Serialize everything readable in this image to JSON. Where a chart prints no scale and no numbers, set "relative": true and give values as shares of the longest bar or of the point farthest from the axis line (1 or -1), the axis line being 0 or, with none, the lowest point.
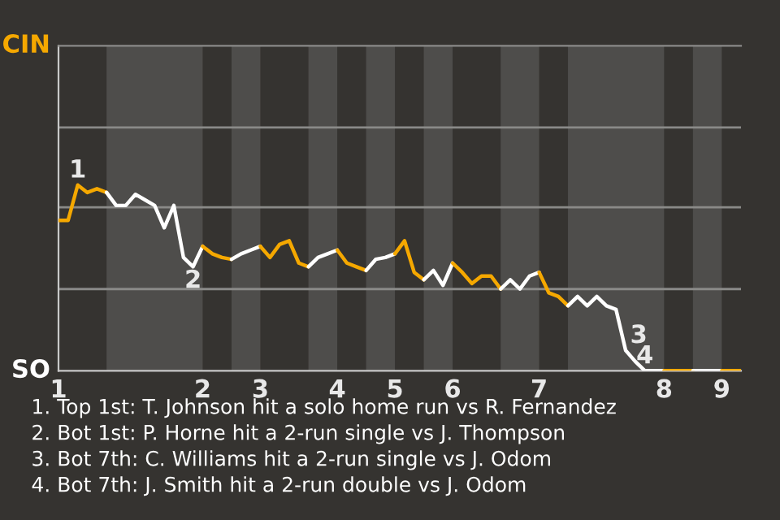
{
  "chart_data": {
    "type": "line",
    "relative": true,
    "categories": [
      "1",
      null,
      null,
      null,
      null,
      null,
      null,
      null,
      null,
      null,
      null,
      null,
      null,
      null,
      null,
      "2",
      null,
      null,
      null,
      null,
      null,
      "3",
      null,
      null,
      null,
      null,
      null,
      null,
      null,
      "4",
      null,
      null,
      null,
      null,
      null,
      "5",
      null,
      null,
      null,
      null,
      null,
      "6",
      null,
      null,
      null,
      null,
      null,
      null,
      null,
      null,
      "7",
      null,
      null,
      null,
      null,
      null,
      null,
      null,
      null,
      null,
      null,
      null,
      null,
      "8",
      null,
      null,
      null,
      null,
      null,
      "9",
      null,
      null
    ],
    "ref_lines": [
      {
        "axis": "y",
        "value": 0.44,
        "color": "#8a8a88"
      },
      {
        "axis": "y",
        "value": 0.88,
        "color": "#8a8a88"
      },
      {
        "axis": "y",
        "value": 1.31,
        "color": "#8a8a88"
      }
    ],
    "series": [
      {
        "color": "#f5a800",
        "values": [
          0.81,
          0.81,
          1,
          0.96,
          0.98,
          0.96,
          null,
          null,
          null,
          null,
          null,
          null,
          null,
          null,
          null,
          null,
          null,
          null,
          null,
          null,
          null,
          null,
          null,
          null,
          null,
          null,
          null,
          null,
          null,
          null,
          null,
          null,
          null,
          null,
          null,
          null,
          null,
          null,
          null,
          null,
          null,
          null,
          null,
          null,
          null,
          null,
          null,
          null,
          null,
          null,
          null,
          null,
          null,
          null,
          null,
          null,
          null,
          null,
          null,
          null,
          null,
          null,
          null,
          null,
          null,
          null,
          null,
          null,
          null,
          null,
          null,
          null
        ]
      },
      {
        "color": "#ffffff",
        "values": [
          null,
          null,
          null,
          null,
          null,
          0.96,
          0.89,
          0.89,
          0.95,
          0.92,
          0.89,
          0.77,
          0.89,
          0.61,
          0.56,
          0.67,
          null,
          null,
          null,
          null,
          null,
          null,
          null,
          null,
          null,
          null,
          null,
          null,
          null,
          null,
          null,
          null,
          null,
          null,
          null,
          null,
          null,
          null,
          null,
          null,
          null,
          null,
          null,
          null,
          null,
          null,
          null,
          null,
          null,
          null,
          null,
          null,
          null,
          null,
          null,
          null,
          null,
          null,
          null,
          null,
          null,
          null,
          null,
          null,
          null,
          null,
          null,
          null,
          null,
          null,
          null,
          null
        ]
      },
      {
        "color": "#f5a800",
        "values": [
          null,
          null,
          null,
          null,
          null,
          null,
          null,
          null,
          null,
          null,
          null,
          null,
          null,
          null,
          null,
          0.67,
          0.63,
          0.61,
          0.6,
          null,
          null,
          null,
          null,
          null,
          null,
          null,
          null,
          null,
          null,
          null,
          null,
          null,
          null,
          null,
          null,
          null,
          null,
          null,
          null,
          null,
          null,
          null,
          null,
          null,
          null,
          null,
          null,
          null,
          null,
          null,
          null,
          null,
          null,
          null,
          null,
          null,
          null,
          null,
          null,
          null,
          null,
          null,
          null,
          null,
          null,
          null,
          null,
          null,
          null,
          null,
          null,
          null
        ]
      },
      {
        "color": "#ffffff",
        "values": [
          null,
          null,
          null,
          null,
          null,
          null,
          null,
          null,
          null,
          null,
          null,
          null,
          null,
          null,
          null,
          null,
          null,
          null,
          0.6,
          0.63,
          0.65,
          0.67,
          null,
          null,
          null,
          null,
          null,
          null,
          null,
          null,
          null,
          null,
          null,
          null,
          null,
          null,
          null,
          null,
          null,
          null,
          null,
          null,
          null,
          null,
          null,
          null,
          null,
          null,
          null,
          null,
          null,
          null,
          null,
          null,
          null,
          null,
          null,
          null,
          null,
          null,
          null,
          null,
          null,
          null,
          null,
          null,
          null,
          null,
          null,
          null,
          null,
          null
        ]
      },
      {
        "color": "#f5a800",
        "values": [
          null,
          null,
          null,
          null,
          null,
          null,
          null,
          null,
          null,
          null,
          null,
          null,
          null,
          null,
          null,
          null,
          null,
          null,
          null,
          null,
          null,
          0.67,
          0.61,
          0.68,
          0.7,
          0.58,
          0.56,
          null,
          null,
          null,
          null,
          null,
          null,
          null,
          null,
          null,
          null,
          null,
          null,
          null,
          null,
          null,
          null,
          null,
          null,
          null,
          null,
          null,
          null,
          null,
          null,
          null,
          null,
          null,
          null,
          null,
          null,
          null,
          null,
          null,
          null,
          null,
          null,
          null,
          null,
          null,
          null,
          null,
          null,
          null,
          null,
          null
        ]
      },
      {
        "color": "#ffffff",
        "values": [
          null,
          null,
          null,
          null,
          null,
          null,
          null,
          null,
          null,
          null,
          null,
          null,
          null,
          null,
          null,
          null,
          null,
          null,
          null,
          null,
          null,
          null,
          null,
          null,
          null,
          null,
          0.56,
          0.61,
          0.63,
          0.65,
          null,
          null,
          null,
          null,
          null,
          null,
          null,
          null,
          null,
          null,
          null,
          null,
          null,
          null,
          null,
          null,
          null,
          null,
          null,
          null,
          null,
          null,
          null,
          null,
          null,
          null,
          null,
          null,
          null,
          null,
          null,
          null,
          null,
          null,
          null,
          null,
          null,
          null,
          null,
          null,
          null,
          null
        ]
      },
      {
        "color": "#f5a800",
        "values": [
          null,
          null,
          null,
          null,
          null,
          null,
          null,
          null,
          null,
          null,
          null,
          null,
          null,
          null,
          null,
          null,
          null,
          null,
          null,
          null,
          null,
          null,
          null,
          null,
          null,
          null,
          null,
          null,
          null,
          0.65,
          0.58,
          0.56,
          0.54,
          null,
          null,
          null,
          null,
          null,
          null,
          null,
          null,
          null,
          null,
          null,
          null,
          null,
          null,
          null,
          null,
          null,
          null,
          null,
          null,
          null,
          null,
          null,
          null,
          null,
          null,
          null,
          null,
          null,
          null,
          null,
          null,
          null,
          null,
          null,
          null,
          null,
          null,
          null
        ]
      },
      {
        "color": "#ffffff",
        "values": [
          null,
          null,
          null,
          null,
          null,
          null,
          null,
          null,
          null,
          null,
          null,
          null,
          null,
          null,
          null,
          null,
          null,
          null,
          null,
          null,
          null,
          null,
          null,
          null,
          null,
          null,
          null,
          null,
          null,
          null,
          null,
          null,
          0.54,
          0.6,
          0.61,
          0.63,
          null,
          null,
          null,
          null,
          null,
          null,
          null,
          null,
          null,
          null,
          null,
          null,
          null,
          null,
          null,
          null,
          null,
          null,
          null,
          null,
          null,
          null,
          null,
          null,
          null,
          null,
          null,
          null,
          null,
          null,
          null,
          null,
          null,
          null,
          null,
          null
        ]
      },
      {
        "color": "#f5a800",
        "values": [
          null,
          null,
          null,
          null,
          null,
          null,
          null,
          null,
          null,
          null,
          null,
          null,
          null,
          null,
          null,
          null,
          null,
          null,
          null,
          null,
          null,
          null,
          null,
          null,
          null,
          null,
          null,
          null,
          null,
          null,
          null,
          null,
          null,
          null,
          null,
          0.63,
          0.7,
          0.53,
          0.49,
          null,
          null,
          null,
          null,
          null,
          null,
          null,
          null,
          null,
          null,
          null,
          null,
          null,
          null,
          null,
          null,
          null,
          null,
          null,
          null,
          null,
          null,
          null,
          null,
          null,
          null,
          null,
          null,
          null,
          null,
          null,
          null,
          null
        ]
      },
      {
        "color": "#ffffff",
        "values": [
          null,
          null,
          null,
          null,
          null,
          null,
          null,
          null,
          null,
          null,
          null,
          null,
          null,
          null,
          null,
          null,
          null,
          null,
          null,
          null,
          null,
          null,
          null,
          null,
          null,
          null,
          null,
          null,
          null,
          null,
          null,
          null,
          null,
          null,
          null,
          null,
          null,
          null,
          0.49,
          0.54,
          0.46,
          0.58,
          null,
          null,
          null,
          null,
          null,
          null,
          null,
          null,
          null,
          null,
          null,
          null,
          null,
          null,
          null,
          null,
          null,
          null,
          null,
          null,
          null,
          null,
          null,
          null,
          null,
          null,
          null,
          null,
          null,
          null
        ]
      },
      {
        "color": "#f5a800",
        "values": [
          null,
          null,
          null,
          null,
          null,
          null,
          null,
          null,
          null,
          null,
          null,
          null,
          null,
          null,
          null,
          null,
          null,
          null,
          null,
          null,
          null,
          null,
          null,
          null,
          null,
          null,
          null,
          null,
          null,
          null,
          null,
          null,
          null,
          null,
          null,
          null,
          null,
          null,
          null,
          null,
          null,
          0.58,
          0.53,
          0.47,
          0.51,
          0.51,
          0.44,
          null,
          null,
          null,
          null,
          null,
          null,
          null,
          null,
          null,
          null,
          null,
          null,
          null,
          null,
          null,
          null,
          null,
          null,
          null,
          null,
          null,
          null,
          null,
          null,
          null
        ]
      },
      {
        "color": "#ffffff",
        "values": [
          null,
          null,
          null,
          null,
          null,
          null,
          null,
          null,
          null,
          null,
          null,
          null,
          null,
          null,
          null,
          null,
          null,
          null,
          null,
          null,
          null,
          null,
          null,
          null,
          null,
          null,
          null,
          null,
          null,
          null,
          null,
          null,
          null,
          null,
          null,
          null,
          null,
          null,
          null,
          null,
          null,
          null,
          null,
          null,
          null,
          null,
          0.44,
          0.49,
          0.44,
          0.51,
          0.53,
          null,
          null,
          null,
          null,
          null,
          null,
          null,
          null,
          null,
          null,
          null,
          null,
          null,
          null,
          null,
          null,
          null,
          null,
          null,
          null,
          null
        ]
      },
      {
        "color": "#f5a800",
        "values": [
          null,
          null,
          null,
          null,
          null,
          null,
          null,
          null,
          null,
          null,
          null,
          null,
          null,
          null,
          null,
          null,
          null,
          null,
          null,
          null,
          null,
          null,
          null,
          null,
          null,
          null,
          null,
          null,
          null,
          null,
          null,
          null,
          null,
          null,
          null,
          null,
          null,
          null,
          null,
          null,
          null,
          null,
          null,
          null,
          null,
          null,
          null,
          null,
          null,
          null,
          0.53,
          0.42,
          0.4,
          0.35,
          null,
          null,
          null,
          null,
          null,
          null,
          null,
          null,
          null,
          null,
          null,
          null,
          null,
          null,
          null,
          null,
          null,
          null
        ]
      },
      {
        "color": "#ffffff",
        "values": [
          null,
          null,
          null,
          null,
          null,
          null,
          null,
          null,
          null,
          null,
          null,
          null,
          null,
          null,
          null,
          null,
          null,
          null,
          null,
          null,
          null,
          null,
          null,
          null,
          null,
          null,
          null,
          null,
          null,
          null,
          null,
          null,
          null,
          null,
          null,
          null,
          null,
          null,
          null,
          null,
          null,
          null,
          null,
          null,
          null,
          null,
          null,
          null,
          null,
          null,
          null,
          null,
          null,
          0.35,
          0.4,
          0.35,
          0.4,
          0.35,
          0.33,
          0.11,
          0.05,
          0,
          0,
          0,
          null,
          null,
          null,
          null,
          null,
          null,
          null,
          null
        ]
      },
      {
        "color": "#f5a800",
        "values": [
          null,
          null,
          null,
          null,
          null,
          null,
          null,
          null,
          null,
          null,
          null,
          null,
          null,
          null,
          null,
          null,
          null,
          null,
          null,
          null,
          null,
          null,
          null,
          null,
          null,
          null,
          null,
          null,
          null,
          null,
          null,
          null,
          null,
          null,
          null,
          null,
          null,
          null,
          null,
          null,
          null,
          null,
          null,
          null,
          null,
          null,
          null,
          null,
          null,
          null,
          null,
          null,
          null,
          null,
          null,
          null,
          null,
          null,
          null,
          null,
          null,
          null,
          null,
          0,
          0,
          0,
          0,
          null,
          null,
          null,
          null,
          null
        ]
      },
      {
        "color": "#ffffff",
        "values": [
          null,
          null,
          null,
          null,
          null,
          null,
          null,
          null,
          null,
          null,
          null,
          null,
          null,
          null,
          null,
          null,
          null,
          null,
          null,
          null,
          null,
          null,
          null,
          null,
          null,
          null,
          null,
          null,
          null,
          null,
          null,
          null,
          null,
          null,
          null,
          null,
          null,
          null,
          null,
          null,
          null,
          null,
          null,
          null,
          null,
          null,
          null,
          null,
          null,
          null,
          null,
          null,
          null,
          null,
          null,
          null,
          null,
          null,
          null,
          null,
          null,
          null,
          null,
          null,
          null,
          null,
          0,
          0,
          0,
          0,
          null,
          null
        ]
      },
      {
        "color": "#f5a800",
        "values": [
          null,
          null,
          null,
          null,
          null,
          null,
          null,
          null,
          null,
          null,
          null,
          null,
          null,
          null,
          null,
          null,
          null,
          null,
          null,
          null,
          null,
          null,
          null,
          null,
          null,
          null,
          null,
          null,
          null,
          null,
          null,
          null,
          null,
          null,
          null,
          null,
          null,
          null,
          null,
          null,
          null,
          null,
          null,
          null,
          null,
          null,
          null,
          null,
          null,
          null,
          null,
          null,
          null,
          null,
          null,
          null,
          null,
          null,
          null,
          null,
          null,
          null,
          null,
          null,
          null,
          null,
          null,
          null,
          null,
          0,
          0,
          0
        ]
      }
    ],
    "annotations": [
      "CIN",
      "SO",
      {
        "text": "1",
        "y": 1
      },
      {
        "text": "2",
        "y": 0.56
      },
      {
        "text": "3",
        "y": 0.11
      },
      {
        "text": "4",
        "y": 0
      },
      "1. Top 1st: T. Johnson hit a solo home run vs R. Fernandez",
      "2. Bot 1st: P. Horne hit a 2-run single vs J. Thompson",
      "3. Bot 7th: C. Williams hit a 2-run single vs J. Odom",
      "4. Bot 7th: J. Smith hit a 2-run double vs J. Odom"
    ]
  }
}
